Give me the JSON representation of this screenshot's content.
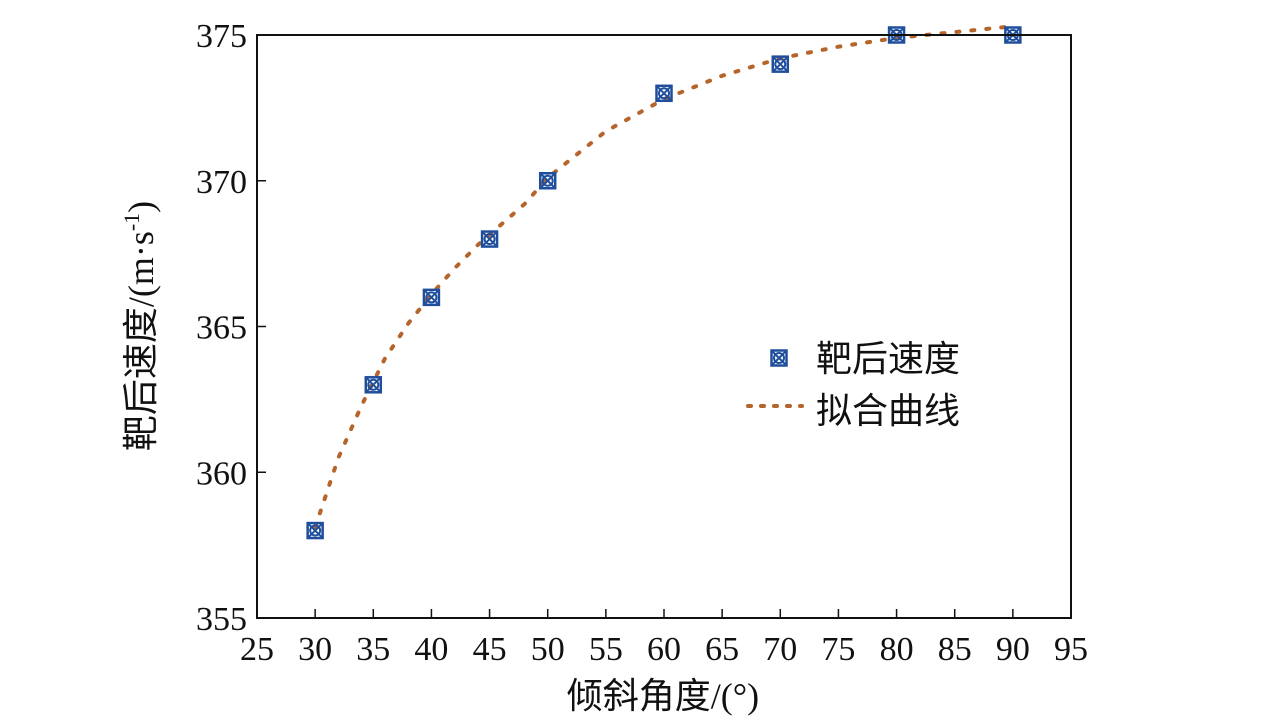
{
  "chart_data": {
    "type": "scatter",
    "title": "",
    "xlabel": "倾斜角度/(°)",
    "ylabel_main": "靶后速度/(m·s",
    "ylabel_sup": "-1",
    "ylabel_close": ")",
    "xlim": [
      25,
      95
    ],
    "ylim": [
      355,
      375
    ],
    "xticks": [
      25,
      30,
      35,
      40,
      45,
      50,
      55,
      60,
      65,
      70,
      75,
      80,
      85,
      90,
      95
    ],
    "yticks": [
      355,
      360,
      365,
      370,
      375
    ],
    "grid": false,
    "legend_position": "center-right",
    "series": [
      {
        "name": "靶后速度",
        "kind": "markers",
        "color": "#1f4e9c",
        "x": [
          30,
          35,
          40,
          45,
          50,
          60,
          70,
          80,
          90
        ],
        "y": [
          358,
          363,
          366,
          368,
          370,
          373,
          374,
          375,
          375
        ]
      },
      {
        "name": "拟合曲线",
        "kind": "dotted-line",
        "color": "#b5652b",
        "x": [
          30,
          32,
          34,
          36,
          38,
          40,
          42,
          44,
          46,
          48,
          50,
          55,
          60,
          65,
          70,
          75,
          80,
          85,
          90
        ],
        "y": [
          358.1,
          360.5,
          362.3,
          363.9,
          365.1,
          366.1,
          367.0,
          367.8,
          368.5,
          369.2,
          370.1,
          371.7,
          372.8,
          373.6,
          374.2,
          374.6,
          374.9,
          375.1,
          375.3
        ]
      }
    ]
  }
}
